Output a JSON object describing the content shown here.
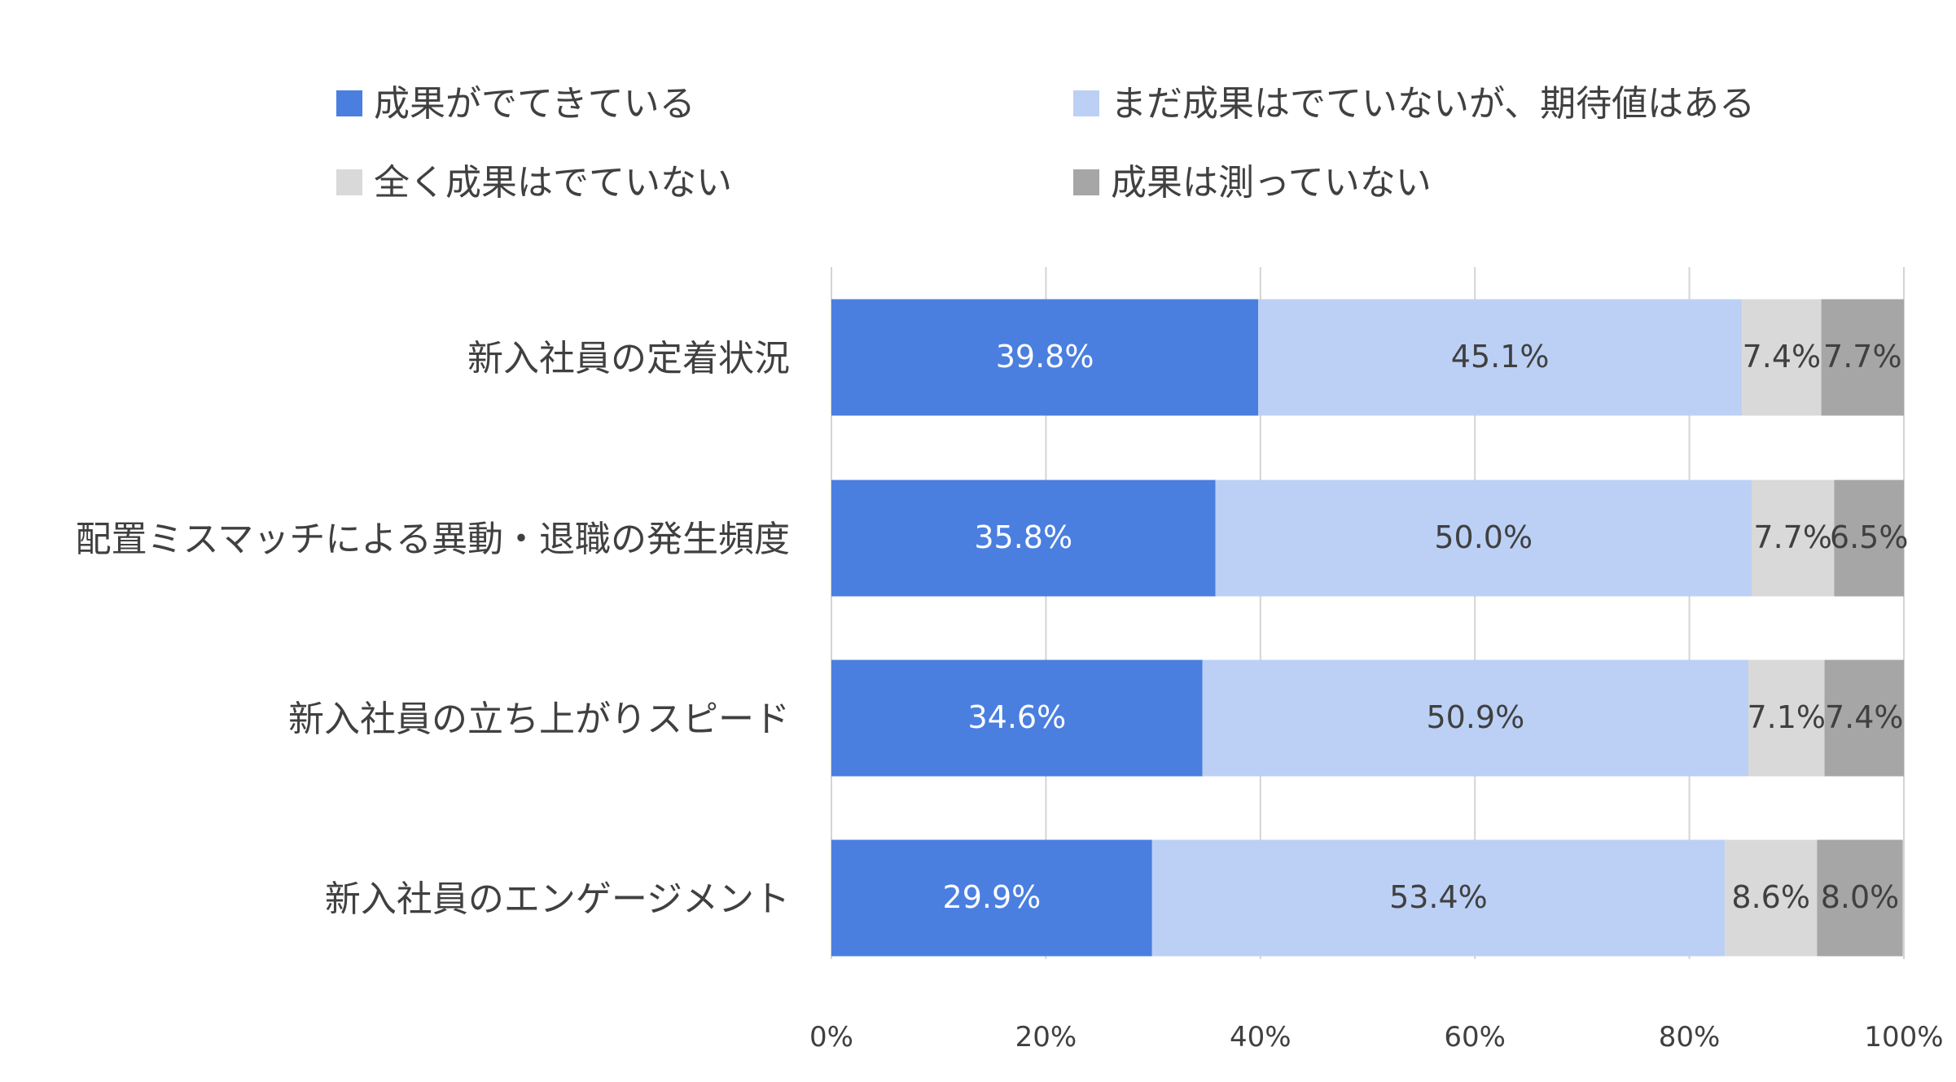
{
  "chart_data": {
    "type": "bar",
    "orientation": "horizontal",
    "stacked": true,
    "categories": [
      "新入社員の定着状況",
      "配置ミスマッチによる異動・退職の発生頻度",
      "新入社員の立ち上がりスピード",
      "新入社員のエンゲージメント"
    ],
    "series": [
      {
        "name": "成果がでてきている",
        "color": "#4a7fe0",
        "values": [
          39.8,
          35.8,
          34.6,
          29.9
        ],
        "labels": [
          "39.8%",
          "35.8%",
          "34.6%",
          "29.9%"
        ],
        "label_color": "#ffffff"
      },
      {
        "name": "まだ成果はでていないが、期待値はある",
        "color": "#bcd0f5",
        "values": [
          45.1,
          50.0,
          50.9,
          53.4
        ],
        "labels": [
          "45.1%",
          "50.0%",
          "50.9%",
          "53.4%"
        ],
        "label_color": "#404040"
      },
      {
        "name": "全く成果はでていない",
        "color": "#d9d9d9",
        "values": [
          7.4,
          7.7,
          7.1,
          8.6
        ],
        "labels": [
          "7.4%",
          "7.7%",
          "7.1%",
          "8.6%"
        ],
        "label_color": "#404040"
      },
      {
        "name": "成果は測っていない",
        "color": "#a6a6a6",
        "values": [
          7.7,
          6.5,
          7.4,
          8.0
        ],
        "labels": [
          "7.7%",
          "6.5%",
          "7.4%",
          "8.0%"
        ],
        "label_color": "#404040"
      }
    ],
    "x_ticks": [
      "0%",
      "20%",
      "40%",
      "60%",
      "80%",
      "100%"
    ],
    "xlim": [
      0,
      100
    ],
    "xlabel": "",
    "ylabel": "",
    "grid": true,
    "legend_position": "top"
  }
}
